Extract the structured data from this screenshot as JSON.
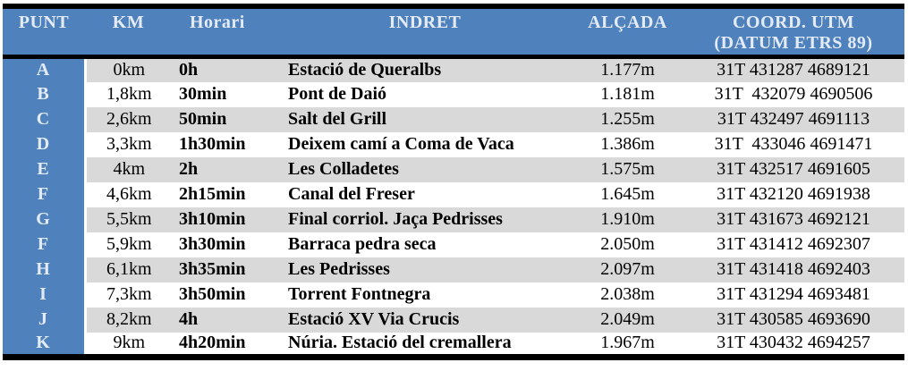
{
  "table": {
    "headers": {
      "punt": "PUNT",
      "km": "KM",
      "horari": "Horari",
      "indret": "INDRET",
      "alcada": "ALÇADA",
      "coord_line1": "COORD. UTM",
      "coord_line2": "(DATUM ETRS 89)"
    },
    "rows": [
      {
        "punt": "A",
        "km": "0km",
        "horari": "0h",
        "indret": "Estació de Queralbs",
        "alcada": "1.177m",
        "coord": "31T 431287 4689121"
      },
      {
        "punt": "B",
        "km": "1,8km",
        "horari": "30min",
        "indret": "Pont de Daió",
        "alcada": "1.181m",
        "coord": "31T  432079 4690506"
      },
      {
        "punt": "C",
        "km": "2,6km",
        "horari": "50min",
        "indret": "Salt del Grill",
        "alcada": "1.255m",
        "coord": "31T 432497 4691113"
      },
      {
        "punt": "D",
        "km": "3,3km",
        "horari": "1h30min",
        "indret": "Deixem camí a Coma de Vaca",
        "alcada": "1.386m",
        "coord": "31T  433046 4691471"
      },
      {
        "punt": "E",
        "km": "4km",
        "horari": "2h",
        "indret": "Les Colladetes",
        "alcada": "1.575m",
        "coord": "31T 432517 4691605"
      },
      {
        "punt": "F",
        "km": "4,6km",
        "horari": "2h15min",
        "indret": "Canal del Freser",
        "alcada": "1.645m",
        "coord": "31T 432120 4691938"
      },
      {
        "punt": "G",
        "km": "5,5km",
        "horari": "3h10min",
        "indret": "Final corriol. Jaça Pedrisses",
        "alcada": "1.910m",
        "coord": "31T 431673 4692121"
      },
      {
        "punt": "F",
        "km": "5,9km",
        "horari": "3h30min",
        "indret": "Barraca pedra seca",
        "alcada": "2.050m",
        "coord": "31T 431412 4692307"
      },
      {
        "punt": "H",
        "km": "6,1km",
        "horari": "3h35min",
        "indret": "Les Pedrisses",
        "alcada": "2.097m",
        "coord": "31T 431418 4692403"
      },
      {
        "punt": "I",
        "km": "7,3km",
        "horari": "3h50min",
        "indret": "Torrent Fontnegra",
        "alcada": "2.038m",
        "coord": "31T 431294 4693481"
      },
      {
        "punt": "J",
        "km": "8,2km",
        "horari": "4h",
        "indret": "Estació XV Via Crucis",
        "alcada": "2.049m",
        "coord": "31T 430585 4693690"
      },
      {
        "punt": "K",
        "km": "9km",
        "horari": "4h20min",
        "indret": "Núria. Estació del cremallera",
        "alcada": "1.967m",
        "coord": "31T 430432 4694257"
      }
    ]
  },
  "colors": {
    "header_bg": "#4F81BD",
    "header_text": "#E3EBF6",
    "row_shaded": "#D9D9D9",
    "row_plain": "#FFFFFF",
    "border": "#000000"
  }
}
